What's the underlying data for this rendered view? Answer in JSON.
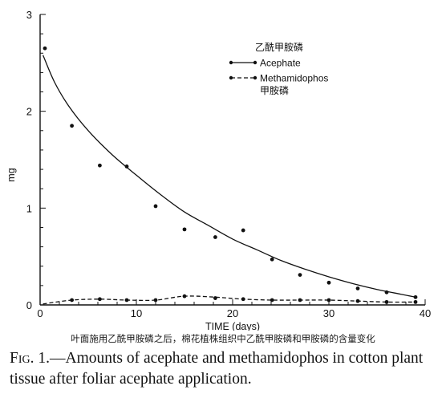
{
  "chart_data": {
    "type": "line",
    "xlabel": "TIME (days)",
    "ylabel": "mg",
    "xlim": [
      0,
      40
    ],
    "ylim": [
      0,
      3
    ],
    "x_ticks": [
      0,
      10,
      20,
      30,
      40
    ],
    "y_ticks": [
      0,
      1,
      2,
      3
    ],
    "grid": false,
    "legend_position": "top-right",
    "legend_title": "乙酰甲胺磷",
    "legend_note": "甲胺磷",
    "series": [
      {
        "name": "Acephate",
        "line_style": "solid",
        "points": [
          {
            "x": 0.5,
            "y": 2.65
          },
          {
            "x": 3.3,
            "y": 1.85
          },
          {
            "x": 6.2,
            "y": 1.44
          },
          {
            "x": 9.0,
            "y": 1.43
          },
          {
            "x": 12.0,
            "y": 1.02
          },
          {
            "x": 15.0,
            "y": 0.78
          },
          {
            "x": 18.2,
            "y": 0.7
          },
          {
            "x": 21.1,
            "y": 0.77
          },
          {
            "x": 24.1,
            "y": 0.47
          },
          {
            "x": 27.0,
            "y": 0.31
          },
          {
            "x": 30.0,
            "y": 0.23
          },
          {
            "x": 33.0,
            "y": 0.17
          },
          {
            "x": 36.0,
            "y": 0.13
          },
          {
            "x": 39.0,
            "y": 0.08
          }
        ],
        "fit_curve": [
          {
            "x": 0.3,
            "y": 2.58
          },
          {
            "x": 1.5,
            "y": 2.3
          },
          {
            "x": 3,
            "y": 2.05
          },
          {
            "x": 5,
            "y": 1.8
          },
          {
            "x": 7.5,
            "y": 1.55
          },
          {
            "x": 10,
            "y": 1.34
          },
          {
            "x": 12.5,
            "y": 1.14
          },
          {
            "x": 15,
            "y": 0.96
          },
          {
            "x": 17.5,
            "y": 0.82
          },
          {
            "x": 20,
            "y": 0.68
          },
          {
            "x": 22.5,
            "y": 0.57
          },
          {
            "x": 25,
            "y": 0.46
          },
          {
            "x": 27.5,
            "y": 0.37
          },
          {
            "x": 30,
            "y": 0.29
          },
          {
            "x": 32.5,
            "y": 0.22
          },
          {
            "x": 35,
            "y": 0.16
          },
          {
            "x": 37.5,
            "y": 0.11
          },
          {
            "x": 39,
            "y": 0.08
          }
        ]
      },
      {
        "name": "Methamidophos",
        "line_style": "dashed",
        "points": [
          {
            "x": 3.3,
            "y": 0.05
          },
          {
            "x": 6.2,
            "y": 0.06
          },
          {
            "x": 9.0,
            "y": 0.05
          },
          {
            "x": 12.0,
            "y": 0.05
          },
          {
            "x": 15.0,
            "y": 0.09
          },
          {
            "x": 18.2,
            "y": 0.07
          },
          {
            "x": 21.1,
            "y": 0.06
          },
          {
            "x": 24.1,
            "y": 0.05
          },
          {
            "x": 27.0,
            "y": 0.05
          },
          {
            "x": 30.0,
            "y": 0.05
          },
          {
            "x": 33.0,
            "y": 0.04
          },
          {
            "x": 36.0,
            "y": 0.03
          },
          {
            "x": 39.0,
            "y": 0.03
          }
        ],
        "fit_curve": [
          {
            "x": 0.3,
            "y": 0.01
          },
          {
            "x": 3.3,
            "y": 0.05
          },
          {
            "x": 6.2,
            "y": 0.06
          },
          {
            "x": 9.0,
            "y": 0.05
          },
          {
            "x": 12.0,
            "y": 0.05
          },
          {
            "x": 15.0,
            "y": 0.09
          },
          {
            "x": 18.2,
            "y": 0.08
          },
          {
            "x": 21.1,
            "y": 0.06
          },
          {
            "x": 24.1,
            "y": 0.05
          },
          {
            "x": 27.0,
            "y": 0.05
          },
          {
            "x": 30.0,
            "y": 0.05
          },
          {
            "x": 33.0,
            "y": 0.04
          },
          {
            "x": 36.0,
            "y": 0.03
          },
          {
            "x": 39.0,
            "y": 0.03
          }
        ]
      }
    ]
  },
  "captions": {
    "chinese": "叶面施用乙酰甲胺磷之后，棉花植株组织中乙酰甲胺磷和甲胺磷的含量变化",
    "figure_label": "Fig. 1.",
    "figure_text": "—Amounts of acephate and methamidophos in cotton plant tissue after foliar acephate application."
  }
}
